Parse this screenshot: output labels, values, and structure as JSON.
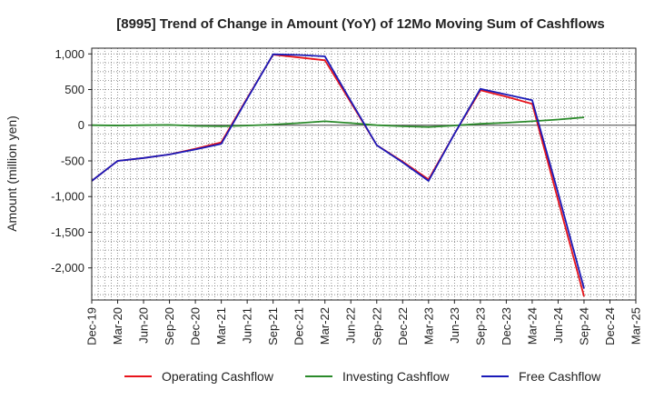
{
  "chart_data": {
    "type": "line",
    "title": "[8995]  Trend of Change in Amount (YoY) of 12Mo Moving Sum of Cashflows",
    "xlabel": "",
    "ylabel": "Amount (million yen)",
    "ylim": [
      -2450,
      1080
    ],
    "yticks": [
      1000,
      500,
      0,
      -500,
      -1000,
      -1500,
      -2000
    ],
    "ytick_labels": [
      "1,000",
      "500",
      "0",
      "-500",
      "-1,000",
      "-1,500",
      "-2,000"
    ],
    "categories": [
      "Dec-19",
      "Mar-20",
      "Jun-20",
      "Sep-20",
      "Dec-20",
      "Mar-21",
      "Jun-21",
      "Sep-21",
      "Dec-21",
      "Mar-22",
      "Jun-22",
      "Sep-22",
      "Dec-22",
      "Mar-23",
      "Jun-23",
      "Sep-23",
      "Dec-23",
      "Mar-24",
      "Jun-24",
      "Sep-24",
      "Dec-24",
      "Mar-25"
    ],
    "grid": true,
    "legend_position": "bottom",
    "series": [
      {
        "name": "Operating Cashflow",
        "color": "#e8141b",
        "values": [
          -780,
          -500,
          -460,
          -410,
          -330,
          -240,
          380,
          990,
          950,
          910,
          320,
          -280,
          -510,
          -760,
          -120,
          490,
          400,
          300,
          -1050,
          -2400,
          null,
          null
        ]
      },
      {
        "name": "Investing Cashflow",
        "color": "#2a8a2a",
        "values": [
          0,
          -5,
          0,
          5,
          -10,
          -15,
          -5,
          10,
          30,
          55,
          30,
          0,
          -15,
          -25,
          -5,
          20,
          35,
          55,
          80,
          110,
          null,
          null
        ]
      },
      {
        "name": "Free Cashflow",
        "color": "#1a1ab8",
        "values": [
          -780,
          -500,
          -460,
          -410,
          -340,
          -260,
          370,
          995,
          985,
          965,
          340,
          -280,
          -520,
          -780,
          -120,
          510,
          430,
          350,
          -950,
          -2290,
          null,
          null
        ]
      }
    ]
  }
}
